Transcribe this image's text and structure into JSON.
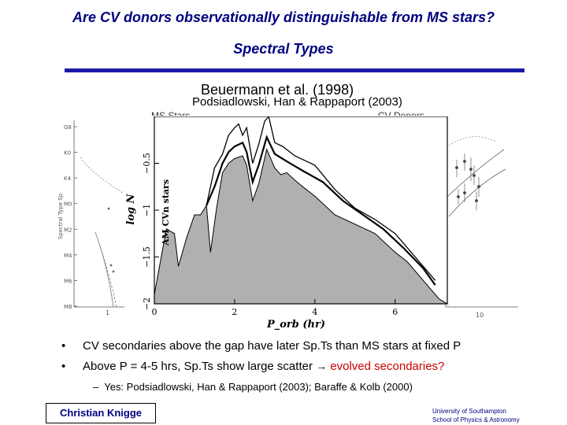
{
  "slide": {
    "title": "Are CV donors observationally distinguishable from MS stars?",
    "subtitle": "Spectral Types",
    "citation_main": "Beuermann et al. (1998)",
    "citation_secondary": "Podsiadlowski, Han & Rappaport (2003)",
    "label_ms_stars": "MS Stars",
    "label_cv_donors": "CV Donors",
    "bullets": [
      {
        "text": "CV secondaries above the gap have later Sp.Ts than MS stars at fixed P"
      },
      {
        "text_before": "Above P = 4-5 hrs, Sp.Ts show large scatter ",
        "arrow": "→",
        "text_red": " evolved secondaries?"
      }
    ],
    "sub_bullet": {
      "dash": "–",
      "text": "Yes: Podsiadlowski, Han & Rappaport (2003); Baraffe & Kolb (2000)"
    },
    "author": "Christian Knigge",
    "institution_line1": "University of Southampton",
    "institution_line2": "School of Physics & Astronomy",
    "bullet_marker": "•"
  },
  "left_figure": {
    "ylabel": "Spectral Type Sp",
    "yticks": [
      "G8",
      "K0",
      "K4",
      "M0",
      "M2",
      "M4",
      "M6",
      "M8"
    ],
    "xticks": [
      "1"
    ]
  },
  "right_figure": {
    "xticks": [
      "10"
    ]
  },
  "chart_data": {
    "type": "area",
    "xlabel": "P_orb (hr)",
    "ylabel": "log N",
    "annotation": "AM CVn stars",
    "xlim": [
      0,
      7.3
    ],
    "ylim": [
      -2,
      0
    ],
    "xticks": [
      0,
      2,
      4,
      6
    ],
    "yticks": [
      -2,
      -1.5,
      -1,
      -0.5
    ],
    "xtick_labels": [
      "0",
      "2",
      "4",
      "6"
    ],
    "ytick_labels": [
      "−2",
      "−1.5",
      "−1",
      "−0.5"
    ],
    "series": [
      {
        "style": "filled-gray",
        "x": [
          0.0,
          0.3,
          0.5,
          0.6,
          0.8,
          1.0,
          1.15,
          1.3,
          1.4,
          1.55,
          1.7,
          1.85,
          2.0,
          2.2,
          2.3,
          2.45,
          2.6,
          2.8,
          3.0,
          3.15,
          3.3,
          3.5,
          3.7,
          4.0,
          4.5,
          5.0,
          5.5,
          6.0,
          6.3,
          6.6,
          6.9,
          7.1,
          7.3
        ],
        "y": [
          -1.9,
          -1.2,
          -1.25,
          -1.6,
          -1.3,
          -1.05,
          -1.05,
          -0.95,
          -1.45,
          -0.98,
          -0.6,
          -0.5,
          -0.45,
          -0.42,
          -0.52,
          -0.9,
          -0.72,
          -0.35,
          -0.55,
          -0.62,
          -0.6,
          -0.68,
          -0.75,
          -0.85,
          -1.05,
          -1.15,
          -1.25,
          -1.45,
          -1.55,
          -1.7,
          -1.85,
          -1.95,
          -2.0
        ]
      },
      {
        "style": "line-thin",
        "x": [
          1.3,
          1.5,
          1.7,
          1.85,
          2.0,
          2.1,
          2.2,
          2.3,
          2.45,
          2.6,
          2.75,
          2.85,
          3.0,
          3.2,
          3.5,
          4.0,
          4.5,
          5.0,
          5.5,
          6.0,
          6.5,
          7.0
        ],
        "y": [
          -0.95,
          -0.55,
          -0.4,
          -0.2,
          -0.12,
          -0.08,
          -0.2,
          -0.12,
          -0.5,
          -0.3,
          -0.05,
          0.02,
          -0.28,
          -0.32,
          -0.42,
          -0.52,
          -0.78,
          -0.98,
          -1.1,
          -1.25,
          -1.5,
          -1.75
        ]
      },
      {
        "style": "line-thick",
        "x": [
          1.3,
          1.5,
          1.7,
          1.85,
          2.0,
          2.2,
          2.3,
          2.45,
          2.6,
          2.8,
          3.0,
          3.3,
          3.7,
          4.2,
          4.7,
          5.2,
          5.7,
          6.2,
          6.7,
          7.0
        ],
        "y": [
          -0.95,
          -0.75,
          -0.5,
          -0.38,
          -0.32,
          -0.28,
          -0.38,
          -0.7,
          -0.52,
          -0.22,
          -0.4,
          -0.48,
          -0.58,
          -0.7,
          -0.9,
          -1.05,
          -1.2,
          -1.4,
          -1.62,
          -1.8
        ]
      }
    ]
  }
}
